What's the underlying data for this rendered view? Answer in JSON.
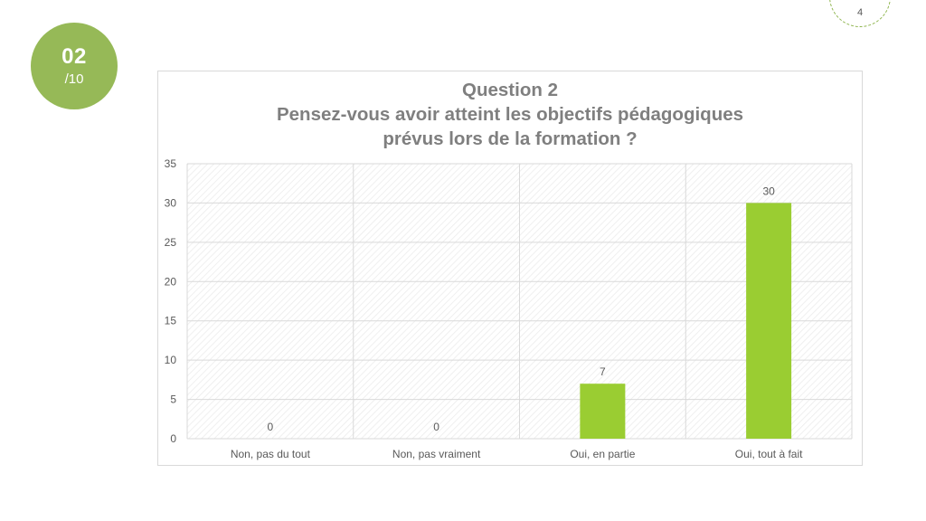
{
  "slide": {
    "page_number": "4",
    "badge": {
      "number": "02",
      "total": "/10"
    },
    "accent_color": "#96b957"
  },
  "chart_data": {
    "type": "bar",
    "title_lines": [
      "Question 2",
      "Pensez-vous avoir atteint les objectifs pédagogiques",
      "prévus lors de la formation ?"
    ],
    "categories": [
      "Non, pas du tout",
      "Non, pas vraiment",
      "Oui, en partie",
      "Oui, tout à fait"
    ],
    "values": [
      0,
      0,
      7,
      30
    ],
    "data_labels": [
      "0",
      "0",
      "7",
      "30"
    ],
    "ylim": [
      0,
      35
    ],
    "y_ticks": [
      "0",
      "5",
      "10",
      "15",
      "20",
      "25",
      "30",
      "35"
    ],
    "grid": true,
    "legend": "none",
    "bar_color": "#9acd32"
  }
}
